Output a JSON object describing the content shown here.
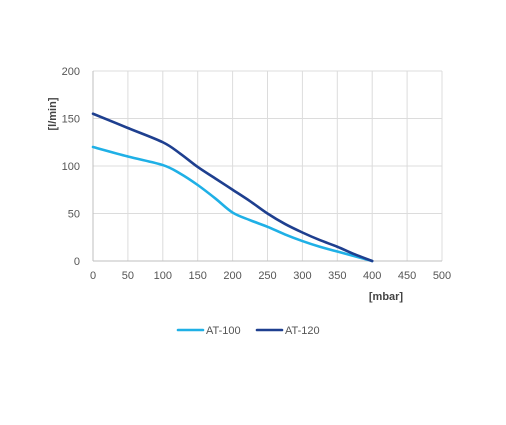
{
  "chart_data": {
    "type": "line",
    "title": "",
    "xlabel": "[mbar]",
    "ylabel": "[l/min]",
    "xlim": [
      0,
      500
    ],
    "ylim": [
      0,
      200
    ],
    "xticks": [
      0,
      50,
      100,
      150,
      200,
      250,
      300,
      350,
      400,
      450,
      500
    ],
    "yticks": [
      0,
      50,
      100,
      150,
      200
    ],
    "grid": true,
    "legend_position": "bottom-center",
    "series": [
      {
        "name": "AT-100",
        "color": "#1fb0e6",
        "x": [
          0,
          50,
          100,
          125,
          150,
          175,
          200,
          225,
          250,
          275,
          300,
          325,
          350,
          375,
          400
        ],
        "y": [
          120,
          110,
          101,
          92,
          80,
          66,
          51,
          43,
          36,
          28,
          21,
          15,
          10,
          5,
          0
        ]
      },
      {
        "name": "AT-120",
        "color": "#1e3f8f",
        "x": [
          0,
          50,
          100,
          125,
          150,
          175,
          200,
          225,
          250,
          275,
          300,
          325,
          350,
          375,
          400
        ],
        "y": [
          155,
          140,
          125,
          113,
          99,
          87,
          75,
          63,
          50,
          39,
          30,
          22,
          15,
          7,
          0
        ]
      }
    ]
  }
}
